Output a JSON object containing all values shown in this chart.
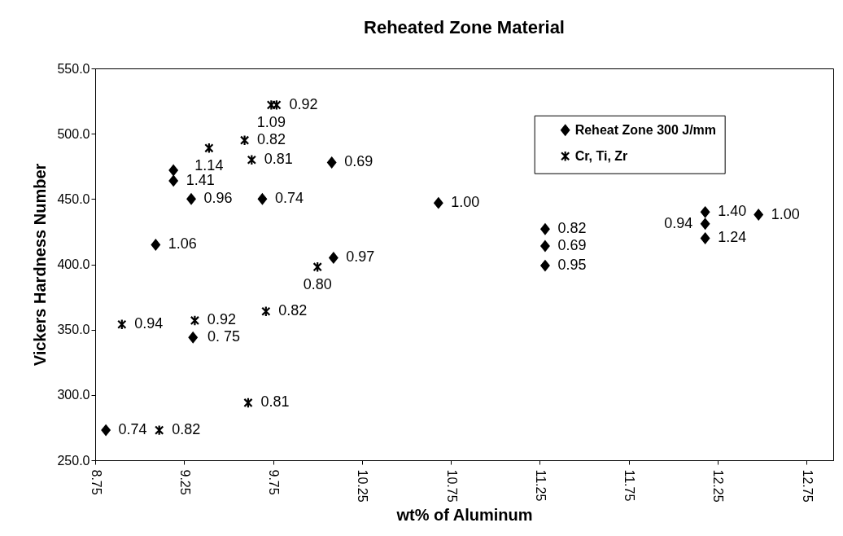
{
  "chart_data": {
    "type": "scatter",
    "title": "Reheated Zone Material",
    "xlabel": "wt% of Aluminum",
    "ylabel": "Vickers Hardness Number",
    "xlim": [
      8.75,
      12.9
    ],
    "xticks": [
      {
        "value": 8.75,
        "label": "8.75"
      },
      {
        "value": 9.25,
        "label": "9.25"
      },
      {
        "value": 9.75,
        "label": "9.75"
      },
      {
        "value": 10.25,
        "label": "10.25"
      },
      {
        "value": 10.75,
        "label": "10.75"
      },
      {
        "value": 11.25,
        "label": "11.25"
      },
      {
        "value": 11.75,
        "label": "11.75"
      },
      {
        "value": 12.25,
        "label": "12.25"
      },
      {
        "value": 12.75,
        "label": "12.75"
      }
    ],
    "ylim": [
      250,
      550
    ],
    "yticks": [
      {
        "value": 250,
        "label": "250.0"
      },
      {
        "value": 300,
        "label": "300.0"
      },
      {
        "value": 350,
        "label": "350.0"
      },
      {
        "value": 400,
        "label": "400.0"
      },
      {
        "value": 450,
        "label": "450.0"
      },
      {
        "value": 500,
        "label": "500.0"
      },
      {
        "value": 550,
        "label": "550.0"
      }
    ],
    "grid": false,
    "legend": "top right",
    "series": [
      {
        "name": "Reheat Zone 300 J/mm",
        "color": "#000000",
        "marker": "diamond",
        "x": [
          8.81,
          9.09,
          9.19,
          9.19,
          9.29,
          9.3,
          9.69,
          10.08,
          10.09,
          10.68,
          11.28,
          11.28,
          11.28,
          12.18,
          12.18,
          12.18,
          12.48
        ],
        "values": [
          273,
          415,
          472,
          464,
          450,
          344,
          450,
          478,
          405,
          447,
          427,
          414,
          399,
          440,
          431,
          420,
          438
        ]
      },
      {
        "name": "Cr, Ti,  Zr",
        "color": "#000000",
        "marker": "cross",
        "x": [
          8.9,
          9.11,
          9.31,
          9.39,
          9.59,
          9.61,
          9.63,
          9.71,
          9.74,
          9.77,
          10.0
        ],
        "values": [
          354,
          273,
          357,
          489,
          495,
          294,
          480,
          364,
          522,
          522,
          398
        ]
      }
    ],
    "annotations": [
      {
        "text": "0.74",
        "x": 8.81,
        "y": 273
      },
      {
        "text": "1.06",
        "x": 9.09,
        "y": 415
      },
      {
        "text": "1.41",
        "x": 9.19,
        "y": 464
      },
      {
        "text": "0.96",
        "x": 9.29,
        "y": 450
      },
      {
        "text": "0. 75",
        "x": 9.3,
        "y": 344
      },
      {
        "text": "0.74",
        "x": 9.69,
        "y": 450
      },
      {
        "text": "0.69",
        "x": 10.08,
        "y": 478
      },
      {
        "text": "0.97",
        "x": 10.09,
        "y": 405
      },
      {
        "text": "1.00",
        "x": 10.68,
        "y": 447
      },
      {
        "text": "0.82",
        "x": 11.28,
        "y": 427
      },
      {
        "text": "0.69",
        "x": 11.28,
        "y": 414
      },
      {
        "text": "0.95",
        "x": 11.28,
        "y": 399
      },
      {
        "text": "1.40",
        "x": 12.18,
        "y": 440
      },
      {
        "text": "0.94",
        "x": 12.18,
        "y": 431
      },
      {
        "text": "1.24",
        "x": 12.18,
        "y": 420
      },
      {
        "text": "1.00",
        "x": 12.48,
        "y": 438
      },
      {
        "text": "0.94",
        "x": 8.9,
        "y": 354
      },
      {
        "text": "0.82",
        "x": 9.11,
        "y": 273
      },
      {
        "text": "0.92",
        "x": 9.31,
        "y": 357
      },
      {
        "text": "1.14",
        "x": 9.39,
        "y": 489
      },
      {
        "text": "0.82",
        "x": 9.59,
        "y": 495
      },
      {
        "text": "0.81",
        "x": 9.61,
        "y": 294
      },
      {
        "text": "0.81",
        "x": 9.63,
        "y": 480
      },
      {
        "text": "0.82",
        "x": 9.71,
        "y": 364
      },
      {
        "text": "1.09",
        "x": 9.74,
        "y": 522
      },
      {
        "text": "0.92",
        "x": 9.77,
        "y": 522
      },
      {
        "text": "0.80",
        "x": 10.0,
        "y": 398
      }
    ]
  }
}
